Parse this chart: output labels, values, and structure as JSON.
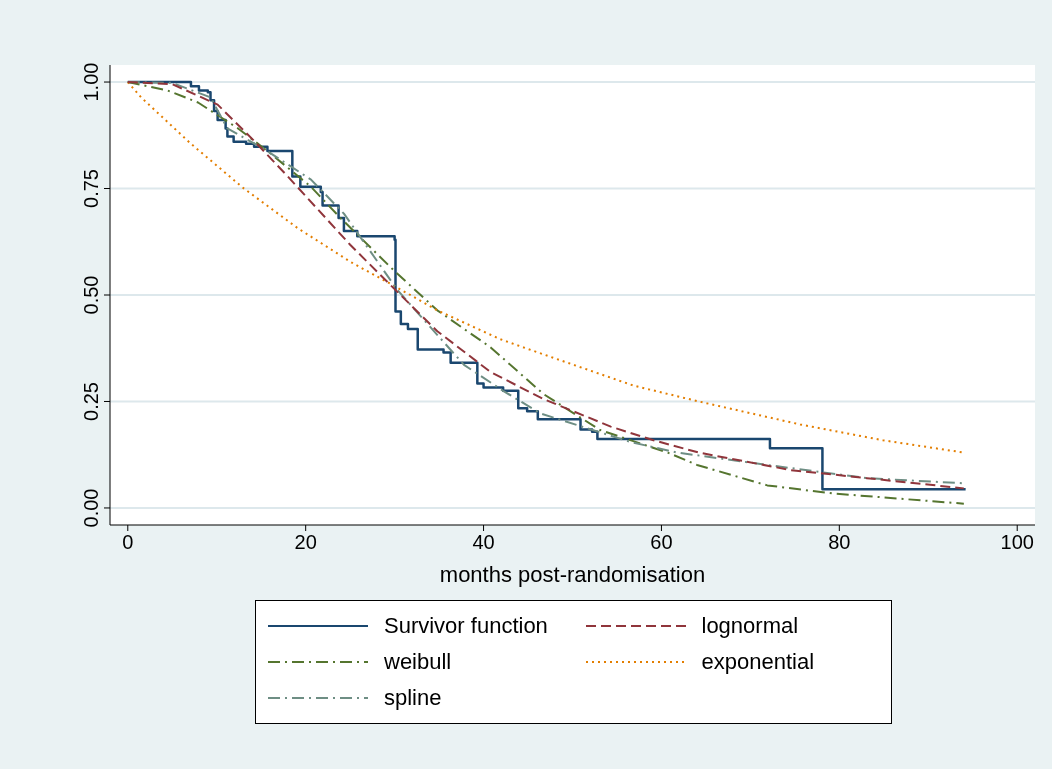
{
  "chart_data": {
    "type": "line",
    "xlabel": "months post-randomisation",
    "xlim": [
      -2,
      102
    ],
    "xticks": [
      0,
      20,
      40,
      60,
      80,
      100
    ],
    "ylim": [
      -0.04,
      1.04
    ],
    "yticks": [
      {
        "value": 0,
        "label": "0.00"
      },
      {
        "value": 0.25,
        "label": "0.25"
      },
      {
        "value": 0.5,
        "label": "0.50"
      },
      {
        "value": 0.75,
        "label": "0.75"
      },
      {
        "value": 1,
        "label": "1.00"
      }
    ],
    "grid": "y",
    "legend": "bottom",
    "series": [
      {
        "name": "Survivor function",
        "type": "step",
        "color": "#1a476f",
        "line_style": "solid",
        "x": [
          0,
          7.1,
          8,
          9,
          9.3,
          9.7,
          10.1,
          11,
          11.2,
          11.9,
          13.3,
          14.2,
          15.7,
          18.5,
          19.4,
          21.7,
          21.9,
          23.7,
          24.3,
          25.8,
          30,
          30.1,
          30.7,
          31.5,
          32.6,
          35.5,
          36.3,
          39.3,
          40,
          42.2,
          43.9,
          44.9,
          46.1,
          50.9,
          52.2,
          52.8,
          72.2,
          78.1,
          94.2
        ],
        "values": [
          1,
          0.99,
          0.98,
          0.976,
          0.957,
          0.932,
          0.911,
          0.891,
          0.872,
          0.86,
          0.855,
          0.848,
          0.838,
          0.778,
          0.754,
          0.742,
          0.71,
          0.681,
          0.65,
          0.638,
          0.63,
          0.461,
          0.432,
          0.42,
          0.372,
          0.365,
          0.341,
          0.292,
          0.283,
          0.275,
          0.234,
          0.227,
          0.208,
          0.184,
          0.179,
          0.162,
          0.14,
          0.044,
          0.044
        ]
      },
      {
        "name": "lognormal",
        "color": "#90353b",
        "line_style": "dashed",
        "x": [
          0,
          5,
          10.1,
          14.2,
          18,
          25,
          29.6,
          34.8,
          40.8,
          46.7,
          54.3,
          59.1,
          64.2,
          74.5,
          83.1,
          94
        ],
        "values": [
          1,
          0.995,
          0.947,
          0.862,
          0.778,
          0.618,
          0.522,
          0.415,
          0.319,
          0.256,
          0.191,
          0.159,
          0.13,
          0.089,
          0.07,
          0.046
        ]
      },
      {
        "name": "weibull",
        "color": "#55752f",
        "line_style": "dashdot",
        "x": [
          0,
          4.5,
          7.9,
          12.4,
          15.7,
          20.6,
          23.9,
          29.9,
          34.8,
          40.8,
          46.7,
          53.1,
          60.7,
          64,
          71.9,
          79.3,
          94
        ],
        "values": [
          1,
          0.98,
          0.952,
          0.891,
          0.838,
          0.754,
          0.681,
          0.558,
          0.464,
          0.377,
          0.268,
          0.183,
          0.13,
          0.101,
          0.053,
          0.034,
          0.01
        ]
      },
      {
        "name": "exponential",
        "color": "#e37e00",
        "line_style": "dotted",
        "x": [
          0,
          1.5,
          7.1,
          13,
          19.1,
          25.1,
          29.9,
          34.8,
          41.9,
          47.5,
          56.9,
          64,
          75.6,
          84.9,
          94
        ],
        "values": [
          1,
          0.964,
          0.855,
          0.751,
          0.657,
          0.577,
          0.522,
          0.464,
          0.396,
          0.355,
          0.287,
          0.251,
          0.196,
          0.159,
          0.13
        ]
      },
      {
        "name": "spline",
        "color": "#6e8e84",
        "line_style": "dashdot",
        "x": [
          0,
          5,
          9.3,
          11.2,
          15.3,
          20.6,
          24.3,
          30.3,
          34,
          37.8,
          42.2,
          46.4,
          56.5,
          61.8,
          71.9,
          83.1,
          94
        ],
        "values": [
          1,
          0.998,
          0.964,
          0.891,
          0.843,
          0.771,
          0.691,
          0.512,
          0.425,
          0.336,
          0.275,
          0.222,
          0.155,
          0.13,
          0.101,
          0.07,
          0.058
        ]
      }
    ]
  }
}
